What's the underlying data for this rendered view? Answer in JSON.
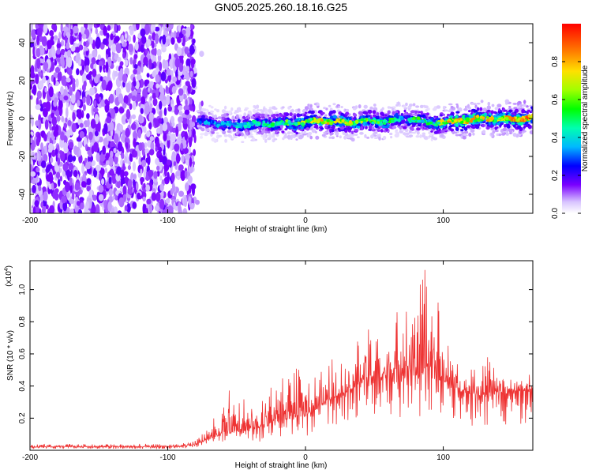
{
  "title": "GN05.2025.260.18.16.G25",
  "chart_data": [
    {
      "type": "heatmap",
      "xlabel": "Height of straight line (km)",
      "ylabel": "Frequency (Hz)",
      "xlim": [
        -200,
        165
      ],
      "ylim": [
        -50,
        50
      ],
      "xticks": [
        -200,
        -100,
        0,
        100
      ],
      "yticks": [
        -40,
        -20,
        0,
        20,
        40
      ],
      "noise_region_km": [
        -200,
        -80
      ],
      "signal_track": {
        "x": [
          -78,
          -70,
          -60,
          -50,
          -40,
          -30,
          -20,
          -10,
          0,
          10,
          20,
          30,
          40,
          50,
          60,
          70,
          80,
          90,
          100,
          110,
          120,
          130,
          140,
          150,
          160,
          165
        ],
        "freq_hz": [
          -1,
          -1,
          -3,
          -4,
          -4,
          -3,
          -2,
          -2,
          -2,
          -2,
          -2,
          -2,
          -1,
          -1,
          -2,
          -1,
          -1,
          -2,
          -1,
          -1,
          -1,
          -1,
          0,
          0,
          1,
          1
        ],
        "normalized_amplitude": [
          0.35,
          0.4,
          0.45,
          0.5,
          0.55,
          0.55,
          0.6,
          0.7,
          0.8,
          0.85,
          0.85,
          0.8,
          0.75,
          0.7,
          0.65,
          0.6,
          0.65,
          0.55,
          0.8,
          0.95,
          0.9,
          0.85,
          0.8,
          0.9,
          0.95,
          0.9
        ]
      },
      "colorbar": {
        "label": "Normalized spectral amplitude",
        "ticks": [
          0.0,
          0.2,
          0.4,
          0.6,
          0.8
        ],
        "tick_labels": [
          "0.0",
          "0.2",
          "0.4",
          "0.6",
          "0.8"
        ],
        "range": [
          0,
          1
        ]
      }
    },
    {
      "type": "line",
      "xlabel": "Height of straight line (km)",
      "ylabel": "SNR (10 * v/v)",
      "y_scale_label": "(x10",
      "y_scale_exp": "4",
      "xlim": [
        -200,
        165
      ],
      "ylim": [
        0,
        1.18
      ],
      "xticks": [
        -200,
        -100,
        0,
        100
      ],
      "yticks": [
        0.2,
        0.4,
        0.6,
        0.8,
        1.0
      ],
      "ytick_labels": [
        "0.2",
        "0.4",
        "0.6",
        "0.8",
        "1.0"
      ],
      "series": [
        {
          "name": "SNR",
          "color": "#ee3333",
          "x": [
            -200,
            -150,
            -100,
            -80,
            -70,
            -60,
            -50,
            -40,
            -30,
            -20,
            -10,
            0,
            10,
            20,
            30,
            40,
            50,
            60,
            70,
            80,
            90,
            100,
            110,
            120,
            130,
            140,
            150,
            165
          ],
          "baseline": [
            0.02,
            0.02,
            0.02,
            0.03,
            0.07,
            0.1,
            0.12,
            0.12,
            0.14,
            0.18,
            0.2,
            0.21,
            0.26,
            0.33,
            0.36,
            0.42,
            0.44,
            0.44,
            0.45,
            0.46,
            0.45,
            0.43,
            0.37,
            0.35,
            0.33,
            0.34,
            0.36,
            0.38
          ],
          "peak": [
            0.04,
            0.04,
            0.04,
            0.06,
            0.16,
            0.3,
            0.46,
            0.32,
            0.37,
            0.43,
            0.5,
            0.53,
            0.5,
            0.58,
            0.6,
            0.77,
            0.75,
            0.84,
            0.92,
            1.02,
            1.18,
            0.78,
            0.56,
            0.5,
            0.6,
            0.6,
            0.44,
            0.48
          ]
        }
      ]
    }
  ]
}
